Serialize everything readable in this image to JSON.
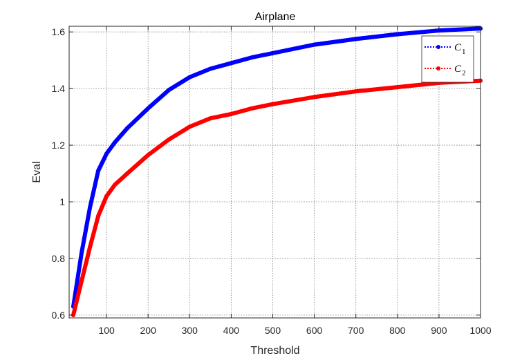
{
  "chart_data": {
    "type": "line",
    "title": "Airplane",
    "xlabel": "Threshold",
    "ylabel": "Eval",
    "xlim": [
      10,
      1000
    ],
    "ylim": [
      0.59,
      1.62
    ],
    "xticks": [
      100,
      200,
      300,
      400,
      500,
      600,
      700,
      800,
      900,
      1000
    ],
    "yticks": [
      0.6,
      0.8,
      1,
      1.2,
      1.4,
      1.6
    ],
    "xtick_labels": [
      "100",
      "200",
      "300",
      "400",
      "500",
      "600",
      "700",
      "800",
      "900",
      "1000"
    ],
    "ytick_labels": [
      "0.6",
      "0.8",
      "1",
      "1.2",
      "1.4",
      "1.6"
    ],
    "grid": true,
    "legend_position": "top-right",
    "series": [
      {
        "name": "C",
        "subscript": "1",
        "color": "#0000ff",
        "x": [
          20,
          40,
          60,
          80,
          100,
          120,
          150,
          200,
          250,
          300,
          350,
          400,
          450,
          500,
          600,
          700,
          800,
          900,
          1000
        ],
        "y": [
          0.63,
          0.82,
          0.98,
          1.11,
          1.17,
          1.21,
          1.26,
          1.33,
          1.395,
          1.44,
          1.47,
          1.49,
          1.51,
          1.525,
          1.555,
          1.575,
          1.592,
          1.605,
          1.612
        ]
      },
      {
        "name": "C",
        "subscript": "2",
        "color": "#ff0000",
        "x": [
          20,
          40,
          60,
          80,
          100,
          120,
          150,
          200,
          250,
          300,
          350,
          400,
          450,
          500,
          600,
          700,
          800,
          900,
          1000
        ],
        "y": [
          0.6,
          0.72,
          0.84,
          0.95,
          1.02,
          1.06,
          1.1,
          1.165,
          1.22,
          1.265,
          1.295,
          1.31,
          1.33,
          1.345,
          1.37,
          1.39,
          1.405,
          1.42,
          1.428
        ]
      }
    ]
  }
}
